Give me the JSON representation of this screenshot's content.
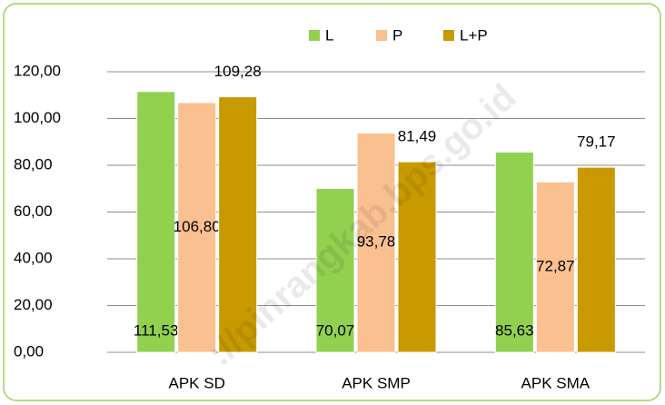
{
  "chart_data": {
    "type": "bar",
    "categories": [
      "APK SD",
      "APK SMP",
      "APK SMA"
    ],
    "series": [
      {
        "name": "L",
        "color": "#92d050",
        "values": [
          111.53,
          70.07,
          85.63
        ],
        "value_labels": [
          "111,53",
          "70,07",
          "85,63"
        ]
      },
      {
        "name": "P",
        "color": "#fac090",
        "values": [
          106.8,
          93.78,
          72.87
        ],
        "value_labels": [
          "106,80",
          "93,78",
          "72,87"
        ]
      },
      {
        "name": "L+P",
        "color": "#c89a00",
        "values": [
          109.28,
          81.49,
          79.17
        ],
        "value_labels": [
          "109,28",
          "81,49",
          "79,17"
        ]
      }
    ],
    "ylim": [
      0,
      120
    ],
    "yticks": [
      {
        "value": 0,
        "label": "0,00"
      },
      {
        "value": 20,
        "label": "20,00"
      },
      {
        "value": 40,
        "label": "40,00"
      },
      {
        "value": 60,
        "label": "60,00"
      },
      {
        "value": 80,
        "label": "80,00"
      },
      {
        "value": 100,
        "label": "100,00"
      },
      {
        "value": 120,
        "label": "120,00"
      }
    ],
    "grid": true,
    "legend": "top",
    "watermark": "://pinrangkab.bps.go.id"
  }
}
